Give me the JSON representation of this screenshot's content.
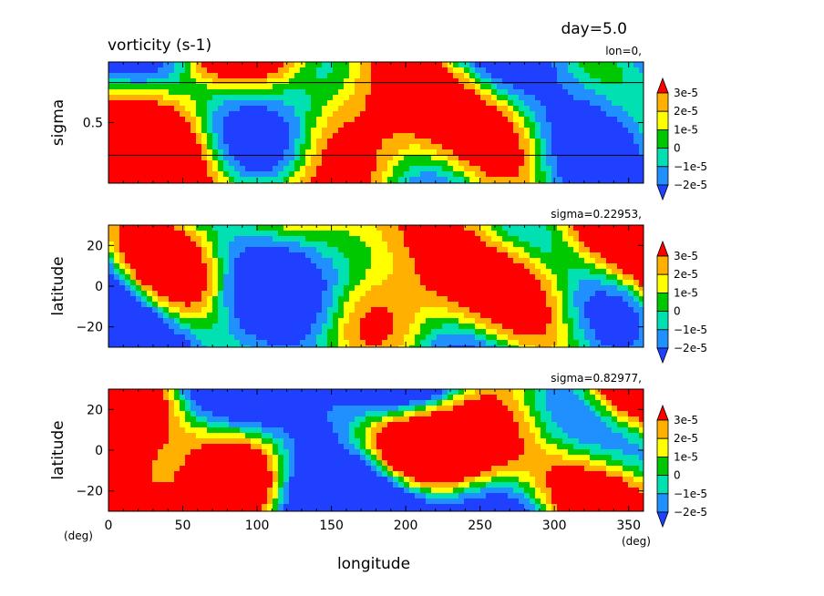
{
  "header": {
    "title": "vorticity (s-1)",
    "day_label": "day=5.0"
  },
  "colors": {
    "levels": [
      "#2040ff",
      "#2090ff",
      "#00e0b0",
      "#00c800",
      "#ffff00",
      "#ffb000",
      "#ff0000"
    ]
  },
  "colorbar": {
    "labels": [
      "3e-5",
      "2e-5",
      "1e-5",
      "0",
      "−1e-5",
      "−2e-5"
    ]
  },
  "x_axis": {
    "label": "longitude",
    "unit_left": "(deg)",
    "unit_right": "(deg)",
    "ticks": [
      "0",
      "50",
      "100",
      "150",
      "200",
      "250",
      "300",
      "350"
    ]
  },
  "chart_data": [
    {
      "type": "heatmap",
      "title": "vorticity (s-1)",
      "annotation": "lon=0,",
      "xlabel": "",
      "ylabel": "sigma",
      "xlim": [
        0,
        360
      ],
      "ylim": [
        0,
        1
      ],
      "y_ticks": [
        "0.5"
      ],
      "y_tick_values": [
        0.5
      ],
      "reference_lines_sigma": [
        0.23,
        0.83
      ],
      "z_levels": [
        -2e-05,
        -1e-05,
        0,
        1e-05,
        2e-05,
        3e-05
      ],
      "seed": 11
    },
    {
      "type": "heatmap",
      "annotation": "sigma=0.22953,",
      "xlabel": "",
      "ylabel": "latitude",
      "xlim": [
        0,
        360
      ],
      "ylim": [
        -30,
        30
      ],
      "y_ticks": [
        "20",
        "0",
        "−20"
      ],
      "y_tick_values": [
        20,
        0,
        -20
      ],
      "z_levels": [
        -2e-05,
        -1e-05,
        0,
        1e-05,
        2e-05,
        3e-05
      ],
      "seed": 23
    },
    {
      "type": "heatmap",
      "annotation": "sigma=0.82977,",
      "xlabel": "longitude",
      "ylabel": "latitude",
      "xlim": [
        0,
        360
      ],
      "ylim": [
        -30,
        30
      ],
      "y_ticks": [
        "20",
        "0",
        "−20"
      ],
      "y_tick_values": [
        20,
        0,
        -20
      ],
      "z_levels": [
        -2e-05,
        -1e-05,
        0,
        1e-05,
        2e-05,
        3e-05
      ],
      "seed": 37
    }
  ]
}
